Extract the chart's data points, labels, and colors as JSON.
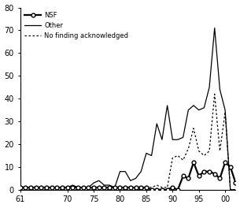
{
  "years": [
    1961,
    1962,
    1963,
    1964,
    1965,
    1966,
    1967,
    1968,
    1969,
    1970,
    1971,
    1972,
    1973,
    1974,
    1975,
    1976,
    1977,
    1978,
    1979,
    1980,
    1981,
    1982,
    1983,
    1984,
    1985,
    1986,
    1987,
    1988,
    1989,
    1990,
    1991,
    1992,
    1993,
    1994,
    1995,
    1996,
    1997,
    1998,
    1999,
    2000,
    2001,
    2002
  ],
  "nsf": [
    1,
    1,
    1,
    1,
    1,
    1,
    1,
    1,
    1,
    1,
    1,
    1,
    1,
    1,
    1,
    1,
    1,
    1,
    1,
    1,
    1,
    1,
    1,
    1,
    1,
    0,
    0,
    0,
    0,
    1,
    0,
    6,
    5,
    12,
    6,
    8,
    8,
    7,
    5,
    12,
    10,
    3
  ],
  "other": [
    1,
    1,
    1,
    1,
    1,
    1,
    1,
    1,
    1,
    1,
    2,
    1,
    1,
    1,
    3,
    4,
    2,
    2,
    1,
    8,
    8,
    4,
    5,
    8,
    16,
    15,
    29,
    22,
    37,
    22,
    22,
    23,
    35,
    37,
    35,
    36,
    45,
    71,
    44,
    35,
    0,
    0
  ],
  "no_funding": [
    0,
    0,
    0,
    0,
    0,
    0,
    0,
    0,
    0,
    0,
    0,
    0,
    0,
    0,
    0,
    0,
    0,
    0,
    0,
    0,
    0,
    0,
    0,
    0,
    1,
    1,
    2,
    1,
    1,
    14,
    15,
    13,
    18,
    27,
    17,
    15,
    17,
    42,
    17,
    34,
    0,
    0
  ],
  "xlim": [
    1961,
    2002
  ],
  "ylim": [
    0,
    80
  ],
  "xticks": [
    1961,
    1970,
    1975,
    1980,
    1985,
    1990,
    1995,
    2000
  ],
  "xticklabels": [
    "61",
    "70",
    "75",
    "80",
    "85",
    "90",
    "95",
    "00"
  ],
  "yticks": [
    0,
    10,
    20,
    30,
    40,
    50,
    60,
    70,
    80
  ],
  "legend_labels": [
    "NSF",
    "Other",
    "No finding acknowledged"
  ],
  "line_color": "#000000",
  "background_color": "#ffffff"
}
